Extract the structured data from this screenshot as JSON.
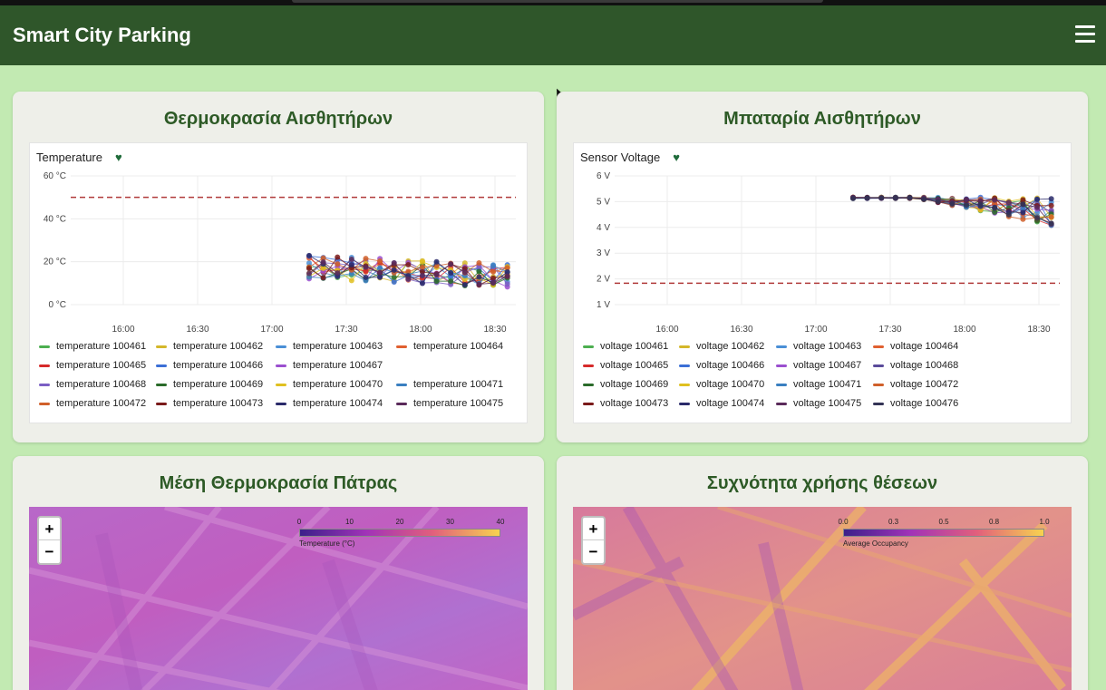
{
  "header": {
    "title": "Smart City Parking",
    "menu_icon": "hamburger-menu-icon"
  },
  "cards": {
    "temperature": {
      "title": "Θερμοκρασία Αισθητήρων",
      "panel_title": "Temperature",
      "y_ticks": [
        "60 °C",
        "40 °C",
        "20 °C",
        "0 °C"
      ],
      "x_ticks": [
        "16:00",
        "16:30",
        "17:00",
        "17:30",
        "18:00",
        "18:30"
      ],
      "legend": [
        [
          "temperature 100461",
          "temperature 100462",
          "temperature 100463",
          "temperature 100464"
        ],
        [
          "temperature 100465",
          "temperature 100466",
          "temperature 100467"
        ],
        [
          "temperature 100468",
          "temperature 100469",
          "temperature 100470",
          "temperature 100471"
        ],
        [
          "temperature 100472",
          "temperature 100473",
          "temperature 100474",
          "temperature 100475"
        ]
      ]
    },
    "battery": {
      "title": "Μπαταρία Αισθητήρων",
      "panel_title": "Sensor Voltage",
      "y_ticks": [
        "6 V",
        "5 V",
        "4 V",
        "3 V",
        "2 V",
        "1 V"
      ],
      "x_ticks": [
        "16:00",
        "16:30",
        "17:00",
        "17:30",
        "18:00",
        "18:30"
      ],
      "legend": [
        [
          "voltage 100461",
          "voltage 100462",
          "voltage 100463",
          "voltage 100464"
        ],
        [
          "voltage 100465",
          "voltage 100466",
          "voltage 100467",
          "voltage 100468"
        ],
        [
          "voltage 100469",
          "voltage 100470",
          "voltage 100471",
          "voltage 100472"
        ],
        [
          "voltage 100473",
          "voltage 100474",
          "voltage 100475",
          "voltage 100476"
        ]
      ]
    },
    "avg_temp_map": {
      "title": "Μέση Θερμοκρασία Πάτρας",
      "scale_ticks": [
        "0",
        "10",
        "20",
        "30",
        "40"
      ],
      "scale_caption": "Temperature (°C)"
    },
    "occupancy_map": {
      "title": "Συχνότητα χρήσης θέσεων",
      "scale_ticks": [
        "0.0",
        "0.3",
        "0.5",
        "0.8",
        "1.0"
      ],
      "scale_caption": "Average Occupancy"
    }
  },
  "zoom": {
    "in": "+",
    "out": "−"
  },
  "colors": {
    "header": "#2f562a",
    "page_bg": "#c2eab2",
    "threshold": "#b03a3a",
    "legend_temp": [
      [
        "#4caf50",
        "#d4b72a",
        "#4a8fd6",
        "#e06030"
      ],
      [
        "#d62a2a",
        "#3b6fd6",
        "#9b4fcf"
      ],
      [
        "#7b5fc4",
        "#2a6b2a",
        "#e0c020",
        "#3a7fc0"
      ],
      [
        "#d0602a",
        "#7a1a1a",
        "#2a2a6a",
        "#5a2a5a"
      ]
    ],
    "legend_volt": [
      [
        "#4caf50",
        "#d4b72a",
        "#4a8fd6",
        "#e06030"
      ],
      [
        "#d62a2a",
        "#3b6fd6",
        "#9b4fcf",
        "#5a4a9a"
      ],
      [
        "#2a6b2a",
        "#e0c020",
        "#3a7fc0",
        "#d0602a"
      ],
      [
        "#7a1a1a",
        "#2a2a6a",
        "#5a2a5a",
        "#333355"
      ]
    ]
  },
  "chart_data": [
    {
      "type": "line",
      "title": "Temperature",
      "ylim": [
        0,
        60
      ],
      "threshold": 50,
      "x_range": [
        "17:15",
        "18:35"
      ],
      "value_band": [
        12,
        23
      ],
      "series_count": 15
    },
    {
      "type": "line",
      "title": "Sensor Voltage",
      "ylim": [
        0,
        6
      ],
      "threshold": 1,
      "x_range": [
        "17:15",
        "18:35"
      ],
      "value_band": [
        3.6,
        5.0
      ],
      "series_count": 16
    }
  ]
}
